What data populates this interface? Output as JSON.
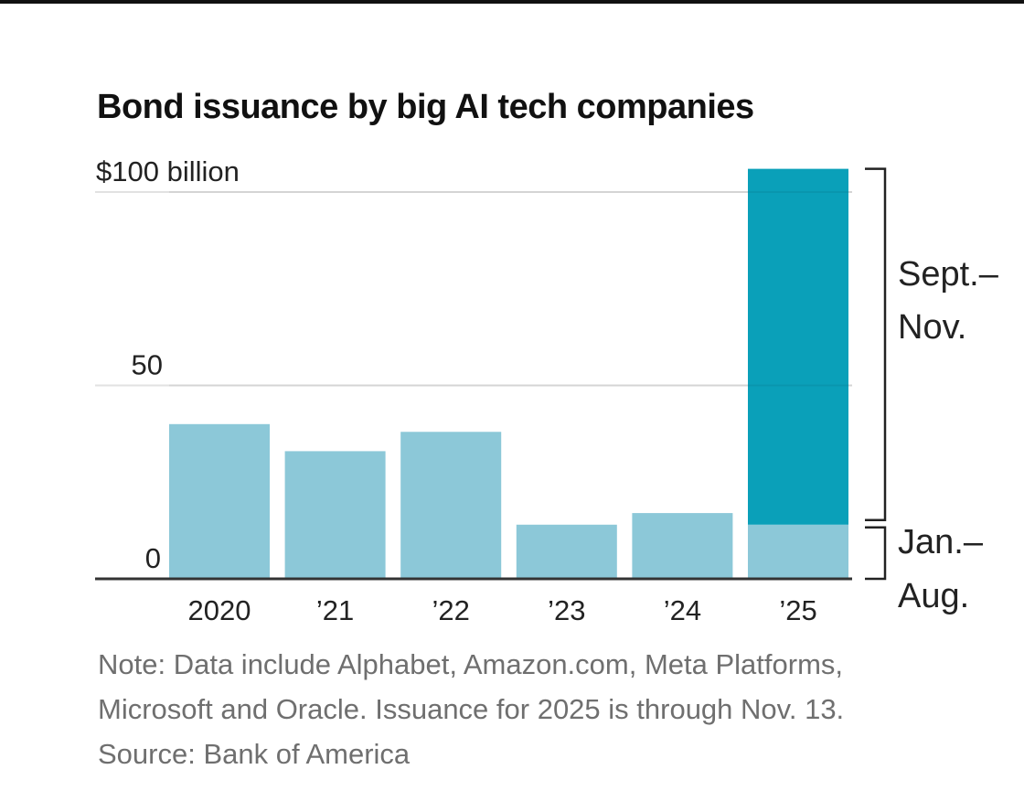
{
  "chart_data": {
    "type": "bar",
    "title": "Bond issuance by big AI tech companies",
    "categories": [
      "2020",
      "’21",
      "’22",
      "’23",
      "’24",
      "’25"
    ],
    "series": [
      {
        "name": "Jan.–Aug.",
        "values": [
          40,
          33,
          38,
          14,
          17,
          14
        ],
        "color": "#8cc8d8"
      },
      {
        "name": "Sept.–Nov.",
        "values": [
          0,
          0,
          0,
          0,
          0,
          92
        ],
        "color": "#0aa0b9"
      }
    ],
    "ylim": [
      0,
      107
    ],
    "yticks": [
      {
        "value": 0,
        "label": "0"
      },
      {
        "value": 50,
        "label": "50"
      },
      {
        "value": 100,
        "label": "$100 billion"
      }
    ],
    "bracket_labels": [
      {
        "series": "Sept.–Nov.",
        "lines": [
          "Sept.–",
          "Nov."
        ]
      },
      {
        "series": "Jan.–Aug.",
        "lines": [
          "Jan.–",
          "Aug."
        ]
      }
    ],
    "grid": true,
    "xlabel": "",
    "ylabel": ""
  },
  "notes": {
    "line1": "Note: Data include Alphabet, Amazon.com, Meta Platforms,",
    "line2": "Microsoft and Oracle. Issuance for 2025 is through Nov. 13.",
    "line3": "Source: Bank of America"
  }
}
